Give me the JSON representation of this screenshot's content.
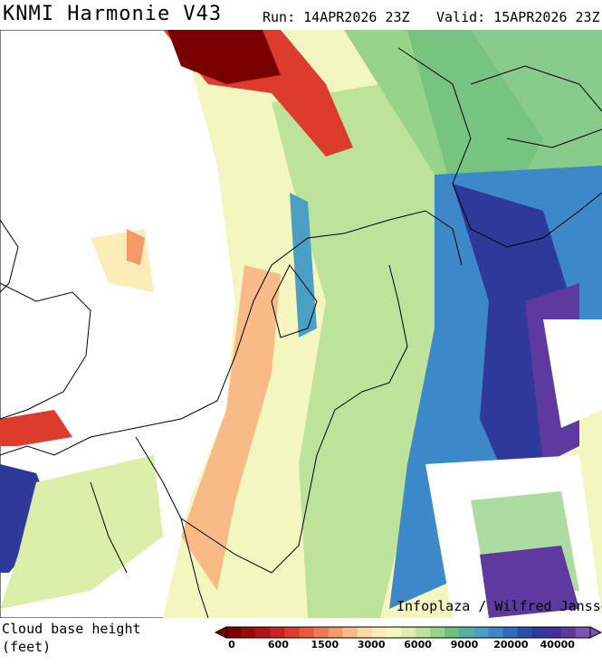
{
  "header": {
    "title": "KNMI Harmonie V43",
    "run": "Run: 14APR2026 23Z",
    "valid": "Valid: 15APR2026 23Z"
  },
  "map": {
    "credit": "Infoplaza / Wilfred Janssen"
  },
  "legend": {
    "title": "Cloud base height",
    "unit": "(feet)",
    "labels": [
      "0",
      "600",
      "1500",
      "3000",
      "6000",
      "9000",
      "20000",
      "40000"
    ],
    "colors": [
      "#7a0000",
      "#950a0a",
      "#b01515",
      "#c92222",
      "#dd3b2e",
      "#e8583a",
      "#f07a4f",
      "#f59a66",
      "#f8bb88",
      "#fbd8a4",
      "#fcecb8",
      "#f4f6c0",
      "#dcefaa",
      "#bde39a",
      "#98d38a",
      "#6ec07c",
      "#55b0a0",
      "#4aa0c4",
      "#3c88c8",
      "#2f6cbf",
      "#2a4fa8",
      "#2e3a99",
      "#44309a",
      "#5e3aa0",
      "#7a55b2"
    ]
  }
}
